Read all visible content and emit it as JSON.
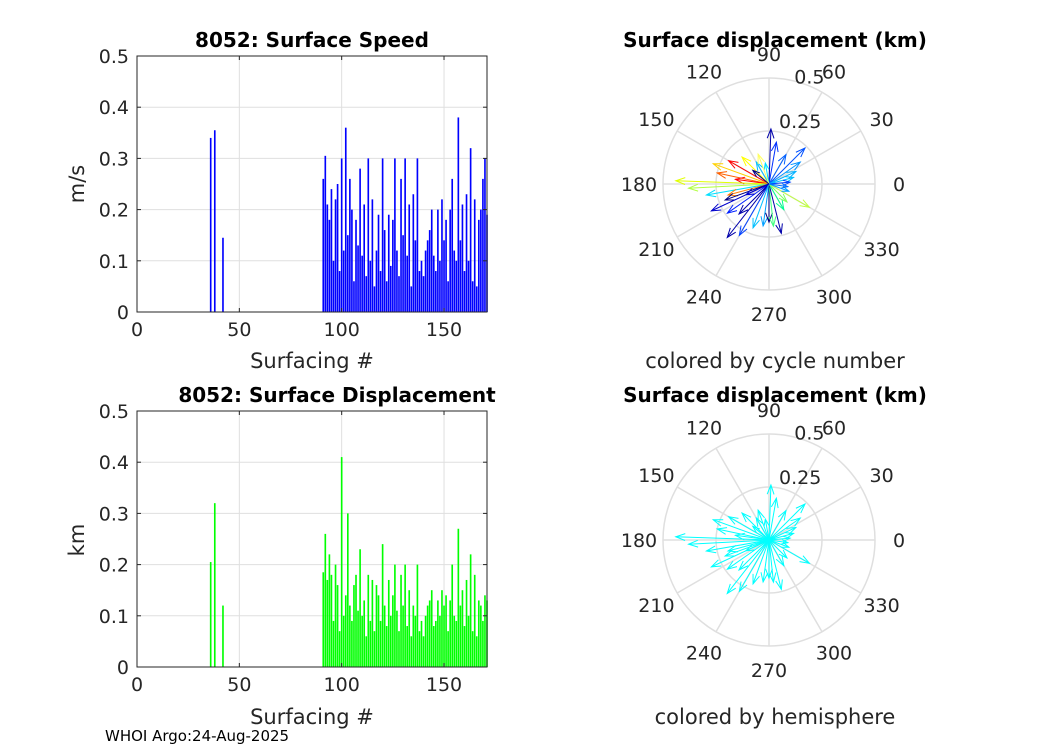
{
  "footer": "WHOI Argo:24-Aug-2025",
  "chart_data": [
    {
      "id": "speed",
      "type": "bar",
      "title": "8052: Surface Speed",
      "xlabel": "Surfacing #",
      "ylabel": "m/s",
      "xlim": [
        0,
        171
      ],
      "ylim": [
        0,
        0.5
      ],
      "xticks": [
        0,
        50,
        100,
        150
      ],
      "yticks": [
        0,
        0.1,
        0.2,
        0.3,
        0.4,
        0.5
      ],
      "color": "#0000ff",
      "grid": true,
      "x": [
        36,
        38,
        42,
        91,
        92,
        93,
        94,
        95,
        96,
        97,
        98,
        99,
        100,
        101,
        102,
        103,
        104,
        105,
        106,
        107,
        108,
        109,
        110,
        111,
        112,
        113,
        114,
        115,
        116,
        117,
        118,
        119,
        120,
        121,
        122,
        123,
        124,
        125,
        126,
        127,
        128,
        129,
        130,
        131,
        132,
        133,
        134,
        135,
        136,
        137,
        138,
        139,
        140,
        141,
        142,
        143,
        144,
        145,
        146,
        147,
        148,
        149,
        150,
        151,
        152,
        153,
        154,
        155,
        156,
        157,
        158,
        159,
        160,
        161,
        162,
        163,
        164,
        165,
        166,
        167,
        168,
        169,
        170,
        171
      ],
      "values": [
        0.34,
        0.355,
        0.145,
        0.26,
        0.305,
        0.21,
        0.18,
        0.24,
        0.1,
        0.22,
        0.25,
        0.08,
        0.3,
        0.12,
        0.36,
        0.15,
        0.26,
        0.2,
        0.06,
        0.18,
        0.13,
        0.28,
        0.11,
        0.21,
        0.07,
        0.3,
        0.1,
        0.22,
        0.05,
        0.12,
        0.19,
        0.08,
        0.3,
        0.16,
        0.06,
        0.19,
        0.09,
        0.18,
        0.3,
        0.12,
        0.07,
        0.26,
        0.15,
        0.3,
        0.11,
        0.21,
        0.05,
        0.23,
        0.14,
        0.3,
        0.08,
        0.1,
        0.07,
        0.12,
        0.14,
        0.16,
        0.2,
        0.11,
        0.08,
        0.2,
        0.1,
        0.22,
        0.14,
        0.18,
        0.06,
        0.2,
        0.26,
        0.12,
        0.1,
        0.38,
        0.14,
        0.21,
        0.08,
        0.23,
        0.1,
        0.32,
        0.06,
        0.22,
        0.05,
        0.18,
        0.2,
        0.26,
        0.3,
        0.19
      ]
    },
    {
      "id": "disp",
      "type": "bar",
      "title": "8052: Surface Displacement",
      "xlabel": "Surfacing #",
      "ylabel": "km",
      "xlim": [
        0,
        171
      ],
      "ylim": [
        0,
        0.5
      ],
      "xticks": [
        0,
        50,
        100,
        150
      ],
      "yticks": [
        0,
        0.1,
        0.2,
        0.3,
        0.4,
        0.5
      ],
      "color": "#00ff00",
      "grid": true,
      "x": [
        36,
        38,
        42,
        91,
        92,
        93,
        94,
        95,
        96,
        97,
        98,
        99,
        100,
        101,
        102,
        103,
        104,
        105,
        106,
        107,
        108,
        109,
        110,
        111,
        112,
        113,
        114,
        115,
        116,
        117,
        118,
        119,
        120,
        121,
        122,
        123,
        124,
        125,
        126,
        127,
        128,
        129,
        130,
        131,
        132,
        133,
        134,
        135,
        136,
        137,
        138,
        139,
        140,
        141,
        142,
        143,
        144,
        145,
        146,
        147,
        148,
        149,
        150,
        151,
        152,
        153,
        154,
        155,
        156,
        157,
        158,
        159,
        160,
        161,
        162,
        163,
        164,
        165,
        166,
        167,
        168,
        169,
        170,
        171
      ],
      "values": [
        0.205,
        0.32,
        0.12,
        0.185,
        0.26,
        0.17,
        0.22,
        0.18,
        0.09,
        0.2,
        0.16,
        0.07,
        0.41,
        0.1,
        0.14,
        0.3,
        0.12,
        0.09,
        0.16,
        0.18,
        0.11,
        0.23,
        0.1,
        0.13,
        0.06,
        0.18,
        0.09,
        0.17,
        0.07,
        0.16,
        0.14,
        0.09,
        0.24,
        0.12,
        0.08,
        0.17,
        0.1,
        0.14,
        0.2,
        0.11,
        0.07,
        0.18,
        0.12,
        0.2,
        0.08,
        0.15,
        0.06,
        0.12,
        0.1,
        0.2,
        0.07,
        0.09,
        0.06,
        0.1,
        0.12,
        0.13,
        0.15,
        0.08,
        0.09,
        0.13,
        0.1,
        0.15,
        0.12,
        0.14,
        0.07,
        0.13,
        0.2,
        0.1,
        0.09,
        0.27,
        0.12,
        0.15,
        0.08,
        0.17,
        0.1,
        0.22,
        0.07,
        0.18,
        0.06,
        0.13,
        0.12,
        0.09,
        0.14,
        0.13
      ]
    },
    {
      "id": "polar-cycle",
      "type": "polar-vector",
      "title": "Surface displacement (km)",
      "subtitle": "colored by cycle number",
      "rlim": [
        0,
        0.5
      ],
      "rticks": [
        "0.25",
        "0.5"
      ],
      "angle_labels": [
        "0",
        "30",
        "60",
        "90",
        "120",
        "150",
        "180",
        "210",
        "240",
        "270",
        "300",
        "330"
      ],
      "vectors": [
        {
          "angle": 88,
          "r": 0.26,
          "color": "#0000aa"
        },
        {
          "angle": 80,
          "r": 0.2,
          "color": "#0030ff"
        },
        {
          "angle": 60,
          "r": 0.16,
          "color": "#0060ff"
        },
        {
          "angle": 45,
          "r": 0.24,
          "color": "#0050ff"
        },
        {
          "angle": 35,
          "r": 0.18,
          "color": "#0090ff"
        },
        {
          "angle": 25,
          "r": 0.14,
          "color": "#00b0ff"
        },
        {
          "angle": 15,
          "r": 0.12,
          "color": "#00c0ff"
        },
        {
          "angle": 5,
          "r": 0.1,
          "color": "#0040ff"
        },
        {
          "angle": 120,
          "r": 0.12,
          "color": "#00c0ff"
        },
        {
          "angle": 135,
          "r": 0.18,
          "color": "#ffff00"
        },
        {
          "angle": 150,
          "r": 0.22,
          "color": "#ff0000"
        },
        {
          "angle": 160,
          "r": 0.28,
          "color": "#ffd000"
        },
        {
          "angle": 168,
          "r": 0.25,
          "color": "#ff6000"
        },
        {
          "angle": 172,
          "r": 0.16,
          "color": "#ff0000"
        },
        {
          "angle": 178,
          "r": 0.44,
          "color": "#e0ff00"
        },
        {
          "angle": 183,
          "r": 0.38,
          "color": "#b0ff40"
        },
        {
          "angle": 190,
          "r": 0.3,
          "color": "#00e0ff"
        },
        {
          "angle": 195,
          "r": 0.2,
          "color": "#ff8000"
        },
        {
          "angle": 200,
          "r": 0.22,
          "color": "#000080"
        },
        {
          "angle": 205,
          "r": 0.3,
          "color": "#0000cc"
        },
        {
          "angle": 215,
          "r": 0.24,
          "color": "#0020ff"
        },
        {
          "angle": 225,
          "r": 0.2,
          "color": "#0000aa"
        },
        {
          "angle": 232,
          "r": 0.32,
          "color": "#0000aa"
        },
        {
          "angle": 240,
          "r": 0.28,
          "color": "#0040ff"
        },
        {
          "angle": 250,
          "r": 0.22,
          "color": "#00c0ff"
        },
        {
          "angle": 262,
          "r": 0.2,
          "color": "#00a0ff"
        },
        {
          "angle": 270,
          "r": 0.18,
          "color": "#000080"
        },
        {
          "angle": 276,
          "r": 0.2,
          "color": "#40ff80"
        },
        {
          "angle": 284,
          "r": 0.24,
          "color": "#0000aa"
        },
        {
          "angle": 300,
          "r": 0.14,
          "color": "#00ff90"
        },
        {
          "angle": 315,
          "r": 0.12,
          "color": "#80ff60"
        },
        {
          "angle": 330,
          "r": 0.22,
          "color": "#c0ff40"
        },
        {
          "angle": 340,
          "r": 0.1,
          "color": "#00a0ff"
        },
        {
          "angle": 352,
          "r": 0.09,
          "color": "#0070ff"
        },
        {
          "angle": 100,
          "r": 0.1,
          "color": "#00e0ff"
        },
        {
          "angle": 110,
          "r": 0.15,
          "color": "#ffff60"
        },
        {
          "angle": 140,
          "r": 0.1,
          "color": "#000080"
        },
        {
          "angle": 205,
          "r": 0.12,
          "color": "#0000cc"
        }
      ]
    },
    {
      "id": "polar-hemi",
      "type": "polar-vector",
      "title": "Surface displacement (km)",
      "subtitle": "colored by hemisphere",
      "rlim": [
        0,
        0.5
      ],
      "rticks": [
        "0.25",
        "0.5"
      ],
      "angle_labels": [
        "0",
        "30",
        "60",
        "90",
        "120",
        "150",
        "180",
        "210",
        "240",
        "270",
        "300",
        "330"
      ],
      "color": "#00ffff",
      "vectors": [
        {
          "angle": 88,
          "r": 0.26
        },
        {
          "angle": 80,
          "r": 0.2
        },
        {
          "angle": 60,
          "r": 0.16
        },
        {
          "angle": 45,
          "r": 0.24
        },
        {
          "angle": 35,
          "r": 0.18
        },
        {
          "angle": 25,
          "r": 0.14
        },
        {
          "angle": 15,
          "r": 0.12
        },
        {
          "angle": 5,
          "r": 0.1
        },
        {
          "angle": 120,
          "r": 0.12
        },
        {
          "angle": 135,
          "r": 0.18
        },
        {
          "angle": 150,
          "r": 0.22
        },
        {
          "angle": 160,
          "r": 0.28
        },
        {
          "angle": 168,
          "r": 0.25
        },
        {
          "angle": 172,
          "r": 0.16
        },
        {
          "angle": 178,
          "r": 0.44
        },
        {
          "angle": 183,
          "r": 0.38
        },
        {
          "angle": 190,
          "r": 0.3
        },
        {
          "angle": 195,
          "r": 0.2
        },
        {
          "angle": 200,
          "r": 0.22
        },
        {
          "angle": 205,
          "r": 0.3
        },
        {
          "angle": 215,
          "r": 0.24
        },
        {
          "angle": 225,
          "r": 0.2
        },
        {
          "angle": 232,
          "r": 0.32
        },
        {
          "angle": 240,
          "r": 0.28
        },
        {
          "angle": 250,
          "r": 0.22
        },
        {
          "angle": 262,
          "r": 0.2
        },
        {
          "angle": 270,
          "r": 0.18
        },
        {
          "angle": 276,
          "r": 0.2
        },
        {
          "angle": 284,
          "r": 0.24
        },
        {
          "angle": 300,
          "r": 0.14
        },
        {
          "angle": 315,
          "r": 0.12
        },
        {
          "angle": 330,
          "r": 0.22
        },
        {
          "angle": 340,
          "r": 0.1
        },
        {
          "angle": 352,
          "r": 0.09
        },
        {
          "angle": 100,
          "r": 0.1
        },
        {
          "angle": 110,
          "r": 0.15
        },
        {
          "angle": 140,
          "r": 0.1
        },
        {
          "angle": 205,
          "r": 0.12
        }
      ]
    }
  ]
}
